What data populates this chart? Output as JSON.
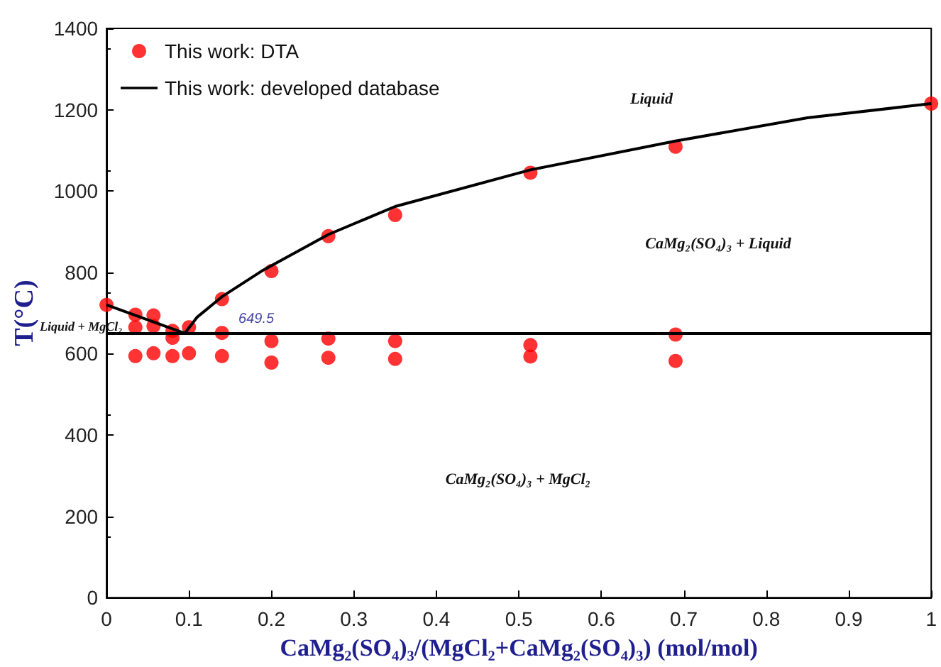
{
  "chart_data": {
    "type": "scatter",
    "xlabel": "CaMg₂(SO₄)₃/(MgCl₂+CaMg₂(SO₄)₃) (mol/mol)",
    "ylabel": "T(°C)",
    "xlim": [
      0,
      1
    ],
    "xticks": [
      0,
      0.1,
      0.2,
      0.3,
      0.4,
      0.5,
      0.6,
      0.7,
      0.8,
      0.9,
      1
    ],
    "ylim": [
      0,
      1400
    ],
    "yticks": [
      0,
      200,
      400,
      600,
      800,
      1000,
      1200,
      1400
    ],
    "legend": "top left",
    "series": [
      {
        "name": "This work: DTA",
        "color": "#ff0000",
        "marker": "circle",
        "x": [
          0,
          0.035,
          0.035,
          0.035,
          0.057,
          0.057,
          0.057,
          0.08,
          0.08,
          0.08,
          0.1,
          0.1,
          0.14,
          0.14,
          0.14,
          0.2,
          0.2,
          0.2,
          0.269,
          0.269,
          0.269,
          0.35,
          0.35,
          0.35,
          0.514,
          0.514,
          0.514,
          0.69,
          0.69,
          0.69,
          1
        ],
        "values": [
          720,
          696,
          665,
          594,
          694,
          668,
          601,
          656,
          639,
          594,
          665,
          601,
          734,
          651,
          594,
          803,
          631,
          578,
          889,
          637,
          590,
          941,
          631,
          587,
          1045,
          621,
          593,
          1109,
          647,
          582,
          1215
        ]
      },
      {
        "name": "This work: developed database",
        "type": "line",
        "color": "#000000",
        "marker": "none",
        "line_style": "solid",
        "x": [
          0,
          0.095,
          0.11,
          0.14,
          0.188,
          0.269,
          0.35,
          0.514,
          0.69,
          0.85,
          1
        ],
        "values": [
          720,
          650,
          690,
          740,
          803,
          893,
          962,
          1052,
          1123,
          1180,
          1215
        ]
      }
    ],
    "ref_lines": [
      {
        "axis": "y",
        "value": 649.5,
        "label": "649.5",
        "color": "#000000"
      }
    ],
    "annotations": [
      "Liquid",
      "CaMg₂(SO₄)₃ + Liquid",
      "CaMg₂(SO₄)₃ + MgCl₂",
      "Liquid + MgCl₂"
    ]
  }
}
